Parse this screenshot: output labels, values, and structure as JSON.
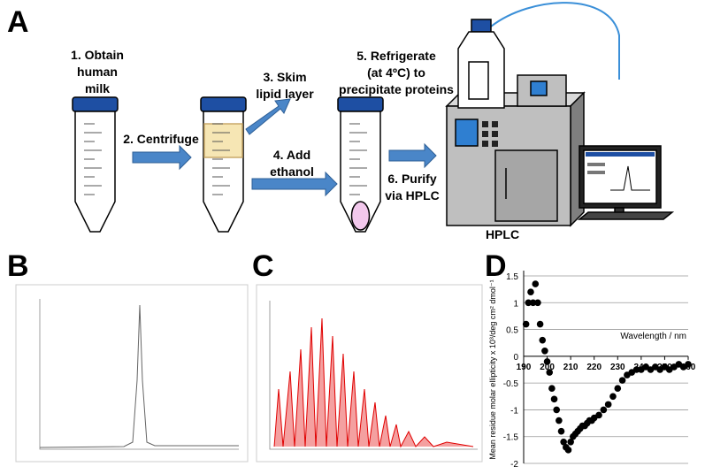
{
  "panels": {
    "a": "A",
    "b": "B",
    "c": "C",
    "d": "D"
  },
  "steps": [
    [
      "1. Obtain",
      "human",
      "milk"
    ],
    [
      "2. Centrifuge"
    ],
    [
      "3. Skim",
      "lipid layer"
    ],
    [
      "4. Add",
      "ethanol"
    ],
    [
      "5. Refrigerate",
      "(at 4ºC) to",
      "precipitate proteins"
    ],
    [
      "6. Purify",
      "via HPLC"
    ]
  ],
  "instrument": "HPLC",
  "chart_data": {
    "type": "scatter",
    "xlabel": "Wavelength / nm",
    "ylabel": "Mean residue molar ellipticity x 10³/deg cm² dmol⁻¹",
    "x": [
      191,
      192,
      193,
      194,
      195,
      196,
      197,
      198,
      199,
      200,
      201,
      202,
      203,
      204,
      205,
      206,
      207,
      208,
      209,
      210,
      211,
      212,
      213,
      214,
      215,
      216,
      217,
      218,
      219,
      220,
      222,
      224,
      226,
      228,
      230,
      232,
      234,
      236,
      238,
      240,
      242,
      244,
      246,
      248,
      250,
      252,
      254,
      256,
      258,
      260
    ],
    "values": [
      0.6,
      1.0,
      1.2,
      1.0,
      1.35,
      1.0,
      0.6,
      0.3,
      0.1,
      -0.1,
      -0.3,
      -0.6,
      -0.8,
      -1.0,
      -1.2,
      -1.4,
      -1.6,
      -1.7,
      -1.75,
      -1.6,
      -1.5,
      -1.45,
      -1.4,
      -1.35,
      -1.3,
      -1.3,
      -1.25,
      -1.2,
      -1.2,
      -1.15,
      -1.1,
      -1.0,
      -0.9,
      -0.75,
      -0.6,
      -0.45,
      -0.35,
      -0.3,
      -0.25,
      -0.25,
      -0.2,
      -0.25,
      -0.2,
      -0.25,
      -0.2,
      -0.25,
      -0.2,
      -0.15,
      -0.2,
      -0.15
    ],
    "color": "#000000",
    "xlim": [
      190,
      260
    ],
    "xticks": [
      190,
      200,
      210,
      220,
      230,
      240,
      250,
      260
    ],
    "ylim": [
      -2,
      1.5
    ],
    "yticks": [
      -2,
      -1.5,
      -1,
      -0.5,
      0,
      0.5,
      1,
      1.5
    ],
    "grid": true
  }
}
